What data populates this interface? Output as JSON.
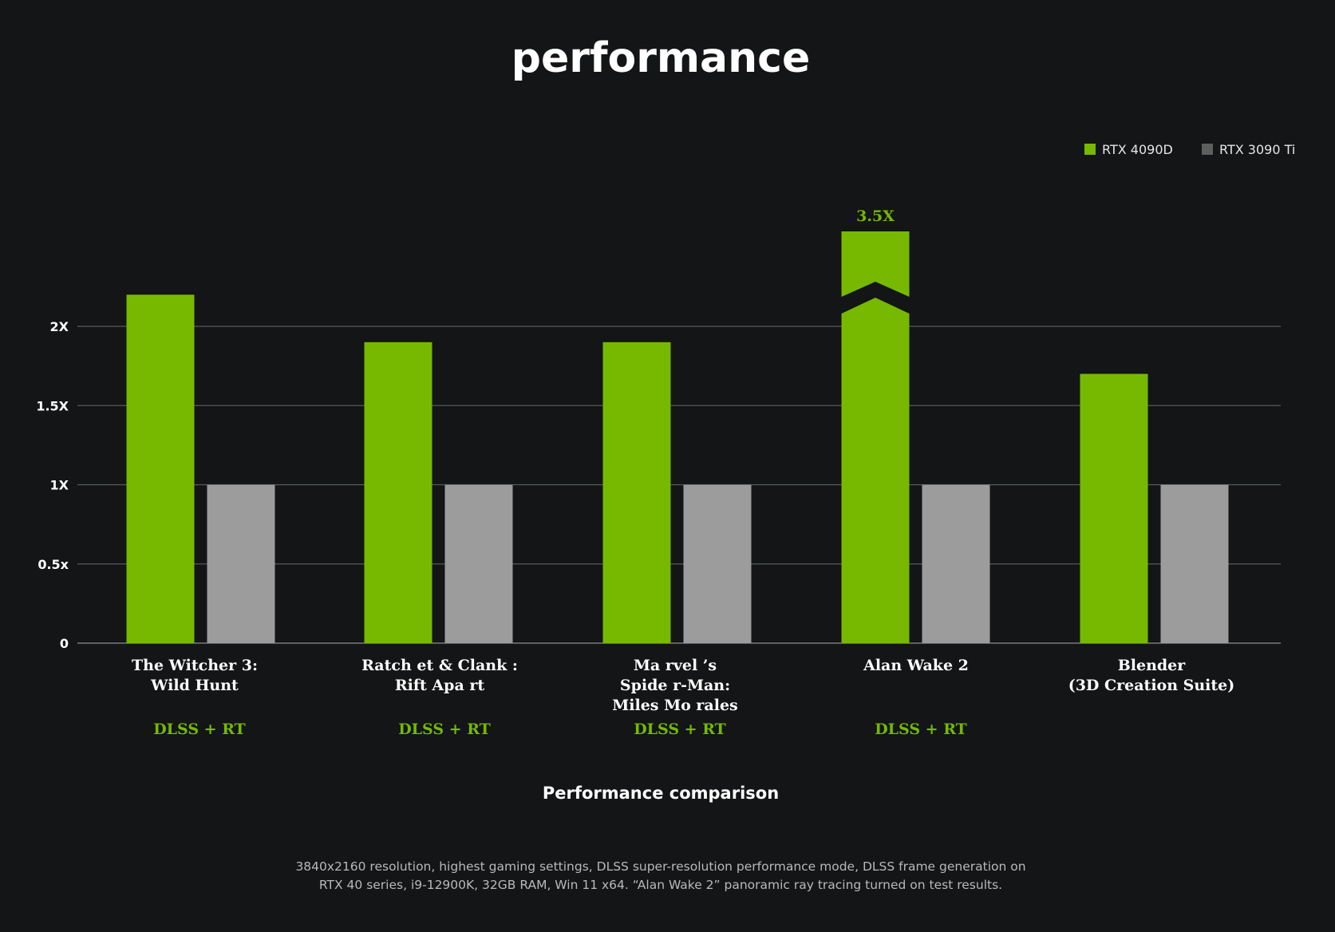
{
  "chart_data": {
    "type": "bar",
    "title": "performance",
    "subtitle": "Performance comparison",
    "categories": [
      [
        "The Witcher 3:",
        "Wild Hunt"
      ],
      [
        "Ratch et & Clank :",
        "Rift Apa rt"
      ],
      [
        "Ma rvel ’s",
        "Spide r-Man:",
        "Miles Mo rales"
      ],
      [
        "Alan Wake 2"
      ],
      [
        "Blender",
        "(3D Creation Suite)"
      ]
    ],
    "category_tags": [
      "DLSS + RT",
      "DLSS + RT",
      "DLSS + RT",
      "DLSS + RT",
      ""
    ],
    "series": [
      {
        "name": "RTX 4090D",
        "color": "#76b900",
        "values": [
          2.2,
          1.9,
          1.9,
          3.5,
          1.7
        ]
      },
      {
        "name": "RTX 3090 Ti",
        "color": "#9c9c9c",
        "values": [
          1.0,
          1.0,
          1.0,
          1.0,
          1.0
        ]
      }
    ],
    "y_ticks": [
      {
        "value": 0,
        "label": "0"
      },
      {
        "value": 0.5,
        "label": "0.5x"
      },
      {
        "value": 1,
        "label": "1X"
      },
      {
        "value": 1.5,
        "label": "1.5X"
      },
      {
        "value": 2,
        "label": "2X"
      }
    ],
    "ylim": [
      0,
      2.0
    ],
    "grid": true,
    "legend_position": "top-right",
    "legend_swatch_colors": [
      "#76b900",
      "#5e5e5e"
    ],
    "axis_break": {
      "series": 0,
      "category": 3,
      "label": "3.5X"
    },
    "tag_color": "#76b900",
    "footnote": [
      "3840x2160 resolution, highest gaming settings, DLSS super-resolution performance mode, DLSS frame generation on",
      "RTX 40 series, i9-12900K, 32GB RAM, Win 11 x64. “Alan Wake 2” panoramic ray tracing turned on test results."
    ]
  }
}
